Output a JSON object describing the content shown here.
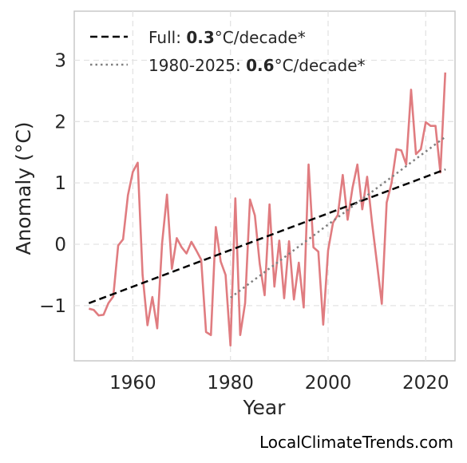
{
  "watermark": "LocalClimateTrends.com",
  "chart_data": {
    "type": "line",
    "xlabel": "Year",
    "ylabel": "Anomaly (°C)",
    "xlim": [
      1948,
      2026
    ],
    "ylim": [
      -1.9,
      3.8
    ],
    "xticks": [
      1960,
      1980,
      2000,
      2020
    ],
    "xtick_labels": [
      "1960",
      "1980",
      "2000",
      "2020"
    ],
    "yticks": [
      -1,
      0,
      1,
      2,
      3
    ],
    "ytick_labels": [
      "−1",
      "0",
      "1",
      "2",
      "3"
    ],
    "grid": true,
    "legend_position": "top-left",
    "series": [
      {
        "color": "#e07c80",
        "style": "solid",
        "x": [
          1951,
          1952,
          1953,
          1954,
          1955,
          1956,
          1957,
          1958,
          1959,
          1960,
          1961,
          1962,
          1963,
          1964,
          1965,
          1966,
          1967,
          1968,
          1969,
          1970,
          1971,
          1972,
          1973,
          1974,
          1975,
          1976,
          1977,
          1978,
          1979,
          1980,
          1981,
          1982,
          1983,
          1984,
          1985,
          1986,
          1987,
          1988,
          1989,
          1990,
          1991,
          1992,
          1993,
          1994,
          1995,
          1996,
          1997,
          1998,
          1999,
          2000,
          2001,
          2002,
          2003,
          2004,
          2005,
          2006,
          2007,
          2008,
          2009,
          2010,
          2011,
          2012,
          2013,
          2014,
          2015,
          2016,
          2017,
          2018,
          2019,
          2020,
          2021,
          2022,
          2023,
          2024
        ],
        "y": [
          -1.05,
          -1.07,
          -1.16,
          -1.15,
          -0.96,
          -0.85,
          -0.02,
          0.08,
          0.8,
          1.18,
          1.33,
          -0.5,
          -1.32,
          -0.86,
          -1.37,
          0.02,
          0.81,
          -0.4,
          0.1,
          -0.05,
          -0.15,
          0.04,
          -0.1,
          -0.25,
          -1.43,
          -1.48,
          0.28,
          -0.28,
          -0.5,
          -1.65,
          0.75,
          -1.48,
          -0.96,
          0.73,
          0.47,
          -0.32,
          -0.83,
          0.65,
          -0.69,
          0.06,
          -0.88,
          0.05,
          -0.9,
          -0.3,
          -1.03,
          1.3,
          -0.05,
          -0.12,
          -1.31,
          -0.1,
          0.35,
          0.48,
          1.13,
          0.4,
          0.92,
          1.3,
          0.57,
          1.1,
          0.35,
          -0.3,
          -0.97,
          0.68,
          1.0,
          1.55,
          1.53,
          1.3,
          2.52,
          1.47,
          1.55,
          1.99,
          1.93,
          1.93,
          1.17,
          2.8
        ]
      },
      {
        "name": "Full",
        "slope_label": "0.3",
        "unit_label": "°C/decade*",
        "color": "#000000",
        "style": "dashed",
        "x": [
          1951,
          2024
        ],
        "y": [
          -0.96,
          1.22
        ]
      },
      {
        "name": "1980-2025",
        "slope_label": "0.6",
        "unit_label": "°C/decade*",
        "color": "#808080",
        "style": "dotted",
        "x": [
          1980,
          2024
        ],
        "y": [
          -0.87,
          1.75
        ]
      }
    ]
  }
}
